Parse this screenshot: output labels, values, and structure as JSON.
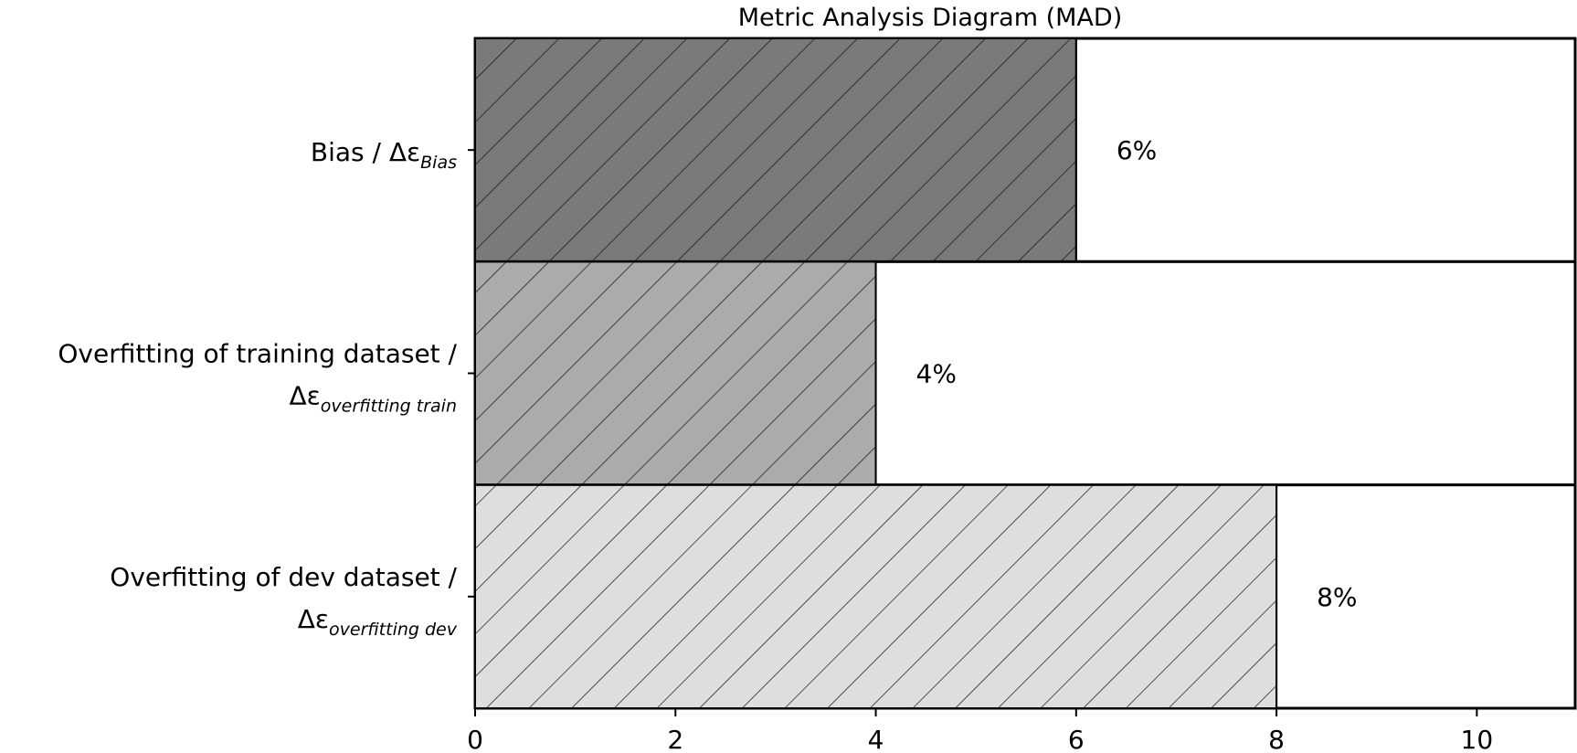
{
  "chart_data": {
    "type": "bar",
    "orientation": "horizontal",
    "title": "Metric Analysis Diagram (MAD)",
    "xlabel": "",
    "ylabel": "",
    "xlim": [
      0,
      11
    ],
    "xticks": [
      0,
      2,
      4,
      6,
      8,
      10
    ],
    "grid": false,
    "legend": "none",
    "categories": [
      {
        "label_line1": "Bias / Δε",
        "label_sub1": "Bias",
        "label_line2": "",
        "label_sub2": ""
      },
      {
        "label_line1": "Overfitting of training dataset /",
        "label_sub1": "",
        "label_line2": "Δε",
        "label_sub2": "overfitting train"
      },
      {
        "label_line1": "Overfitting of dev dataset /",
        "label_sub1": "",
        "label_line2": "Δε",
        "label_sub2": "overfitting dev"
      }
    ],
    "values": [
      6,
      4,
      8
    ],
    "data_labels": [
      "6%",
      "4%",
      "8%"
    ],
    "colors": [
      "#7a7a7a",
      "#ababab",
      "#dedede"
    ],
    "hatch": "diagonal"
  }
}
